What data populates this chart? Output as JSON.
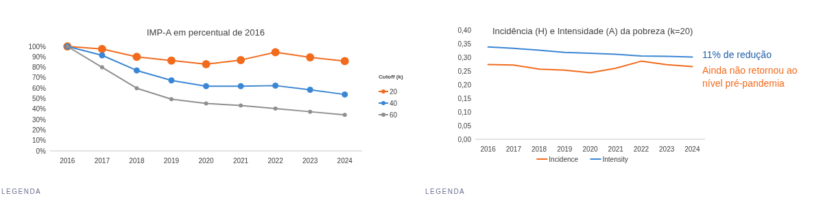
{
  "chart_data": [
    {
      "type": "line",
      "title": "IMP-A em percentual de 2016",
      "categories": [
        "2016",
        "2017",
        "2018",
        "2019",
        "2020",
        "2021",
        "2022",
        "2023",
        "2024"
      ],
      "series": [
        {
          "name": "20",
          "color": "#f26b1d",
          "values": [
            100,
            97.5,
            90,
            86.5,
            83,
            87,
            94.5,
            89.5,
            86
          ]
        },
        {
          "name": "40",
          "color": "#3a86d4",
          "values": [
            100,
            91.5,
            77,
            67.5,
            62,
            62,
            62.5,
            58.5,
            54
          ]
        },
        {
          "name": "60",
          "color": "#8f8f8f",
          "values": [
            100,
            80,
            60,
            49.5,
            45.5,
            43.5,
            40.5,
            37.5,
            34.5
          ]
        }
      ],
      "ylim": [
        0,
        100
      ],
      "yticks": [
        {
          "value": 0,
          "label": "0%"
        },
        {
          "value": 10,
          "label": "10%"
        },
        {
          "value": 20,
          "label": "20%"
        },
        {
          "value": 30,
          "label": "30%"
        },
        {
          "value": 40,
          "label": "40%"
        },
        {
          "value": 50,
          "label": "50%"
        },
        {
          "value": 60,
          "label": "60%"
        },
        {
          "value": 70,
          "label": "70%"
        },
        {
          "value": 80,
          "label": "80%"
        },
        {
          "value": 90,
          "label": "90%"
        },
        {
          "value": 100,
          "label": "100%"
        }
      ],
      "legend": "right",
      "legend_title": "Cutoff (k)",
      "marker": "circle",
      "grid": false,
      "annotations": [
        "LEGENDA"
      ]
    },
    {
      "type": "line",
      "title": "Incidência (H) e Intensidade (A) da pobreza (k=20)",
      "categories": [
        "2016",
        "2017",
        "2018",
        "2019",
        "2020",
        "2021",
        "2022",
        "2023",
        "2024"
      ],
      "series": [
        {
          "name": "Incidence",
          "color": "#f26b1d",
          "values": [
            0.274,
            0.272,
            0.257,
            0.253,
            0.244,
            0.26,
            0.286,
            0.273,
            0.266
          ]
        },
        {
          "name": "Intensity",
          "color": "#3a86d4",
          "values": [
            0.338,
            0.333,
            0.326,
            0.318,
            0.315,
            0.311,
            0.305,
            0.304,
            0.301
          ]
        }
      ],
      "ylim": [
        0,
        0.4
      ],
      "yticks": [
        {
          "value": 0,
          "label": "0,00"
        },
        {
          "value": 0.05,
          "label": "0,05"
        },
        {
          "value": 0.1,
          "label": "0,10"
        },
        {
          "value": 0.15,
          "label": "0,15"
        },
        {
          "value": 0.2,
          "label": "0,20"
        },
        {
          "value": 0.25,
          "label": "0,25"
        },
        {
          "value": 0.3,
          "label": "0,30"
        },
        {
          "value": 0.35,
          "label": "0,35"
        },
        {
          "value": 0.4,
          "label": "0,40"
        }
      ],
      "legend": "bottom",
      "marker": "none",
      "grid": false,
      "annotations": [
        "11% de redução",
        "Ainda não retornou ao nível pré-pandemia",
        "LEGENDA"
      ]
    }
  ]
}
